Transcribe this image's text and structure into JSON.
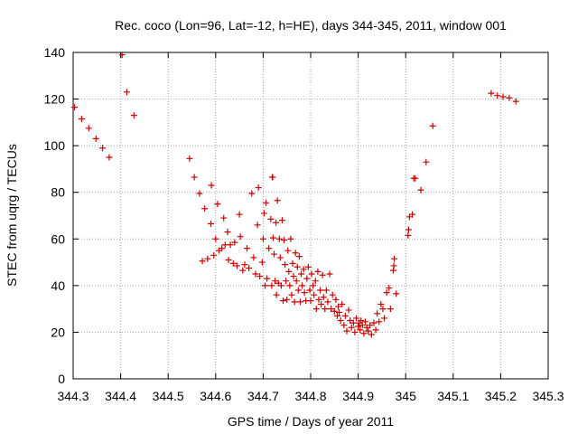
{
  "chart_data": {
    "type": "scatter",
    "title": "Rec. coco (Lon=96, Lat=-12, h=HE), days 344-345, 2011, window 001",
    "xlabel": "GPS time / Days of year 2011",
    "ylabel": "STEC from uqrg / TECUs",
    "xlim": [
      344.3,
      345.3
    ],
    "ylim": [
      0,
      140
    ],
    "xticks": [
      "344.3",
      "344.4",
      "344.5",
      "344.6",
      "344.7",
      "344.8",
      "344.9",
      "345",
      "345.1",
      "345.2",
      "345.3"
    ],
    "yticks": [
      "0",
      "20",
      "40",
      "60",
      "80",
      "100",
      "120",
      "140"
    ],
    "grid": true,
    "marker": "plus",
    "colors": {
      "marker": "#cc0000",
      "grid": "#a0a0a0",
      "axis": "#000000"
    },
    "points": [
      [
        344.303,
        116.5
      ],
      [
        344.318,
        111.5
      ],
      [
        344.333,
        107.5
      ],
      [
        344.348,
        103.0
      ],
      [
        344.362,
        99.0
      ],
      [
        344.376,
        95.0
      ],
      [
        344.403,
        139.0
      ],
      [
        344.413,
        123.0
      ],
      [
        344.428,
        113.0
      ],
      [
        344.545,
        94.5
      ],
      [
        344.555,
        86.5
      ],
      [
        344.566,
        79.5
      ],
      [
        344.572,
        50.5
      ],
      [
        344.577,
        73.0
      ],
      [
        344.583,
        51.5
      ],
      [
        344.59,
        66.5
      ],
      [
        344.591,
        83.0
      ],
      [
        344.596,
        53.0
      ],
      [
        344.6,
        60.0
      ],
      [
        344.604,
        75.0
      ],
      [
        344.607,
        55.0
      ],
      [
        344.613,
        56.0
      ],
      [
        344.617,
        69.0
      ],
      [
        344.62,
        57.5
      ],
      [
        344.625,
        63.0
      ],
      [
        344.627,
        51.0
      ],
      [
        344.631,
        57.5
      ],
      [
        344.637,
        49.5
      ],
      [
        344.64,
        58.5
      ],
      [
        344.645,
        48.5
      ],
      [
        344.65,
        70.5
      ],
      [
        344.652,
        61.0
      ],
      [
        344.657,
        46.5
      ],
      [
        344.661,
        49.0
      ],
      [
        344.666,
        56.0
      ],
      [
        344.67,
        47.5
      ],
      [
        344.676,
        79.5
      ],
      [
        344.68,
        52.0
      ],
      [
        344.684,
        45.0
      ],
      [
        344.688,
        66.0
      ],
      [
        344.69,
        82.0
      ],
      [
        344.693,
        44.0
      ],
      [
        344.698,
        50.0
      ],
      [
        344.7,
        60.0
      ],
      [
        344.702,
        71.0
      ],
      [
        344.704,
        40.0
      ],
      [
        344.706,
        75.5
      ],
      [
        344.708,
        43.0
      ],
      [
        344.712,
        56.0
      ],
      [
        344.716,
        68.5
      ],
      [
        344.718,
        40.0
      ],
      [
        344.719,
        86.5
      ],
      [
        344.72,
        86.5
      ],
      [
        344.721,
        60.5
      ],
      [
        344.723,
        53.5
      ],
      [
        344.725,
        42.0
      ],
      [
        344.727,
        67.0
      ],
      [
        344.728,
        36.0
      ],
      [
        344.73,
        76.5
      ],
      [
        344.732,
        41.0
      ],
      [
        344.734,
        60.0
      ],
      [
        344.736,
        52.0
      ],
      [
        344.738,
        40.0
      ],
      [
        344.74,
        68.0
      ],
      [
        344.742,
        33.5
      ],
      [
        344.744,
        59.5
      ],
      [
        344.746,
        49.0
      ],
      [
        344.748,
        42.0
      ],
      [
        344.75,
        34.0
      ],
      [
        344.752,
        55.0
      ],
      [
        344.754,
        46.0
      ],
      [
        344.756,
        40.0
      ],
      [
        344.758,
        60.0
      ],
      [
        344.76,
        36.0
      ],
      [
        344.762,
        49.5
      ],
      [
        344.764,
        44.0
      ],
      [
        344.766,
        33.0
      ],
      [
        344.768,
        54.0
      ],
      [
        344.77,
        42.0
      ],
      [
        344.772,
        48.0
      ],
      [
        344.774,
        38.0
      ],
      [
        344.776,
        52.5
      ],
      [
        344.778,
        33.0
      ],
      [
        344.78,
        45.0
      ],
      [
        344.782,
        40.0
      ],
      [
        344.785,
        47.0
      ],
      [
        344.787,
        37.0
      ],
      [
        344.79,
        33.5
      ],
      [
        344.792,
        43.0
      ],
      [
        344.795,
        48.0
      ],
      [
        344.798,
        38.0
      ],
      [
        344.8,
        33.5
      ],
      [
        344.802,
        45.0
      ],
      [
        344.805,
        40.0
      ],
      [
        344.807,
        36.0
      ],
      [
        344.81,
        42.0
      ],
      [
        344.812,
        30.0
      ],
      [
        344.815,
        46.0
      ],
      [
        344.817,
        34.0
      ],
      [
        344.82,
        38.0
      ],
      [
        344.822,
        32.0
      ],
      [
        344.825,
        44.5
      ],
      [
        344.827,
        35.0
      ],
      [
        344.83,
        30.0
      ],
      [
        344.833,
        38.0
      ],
      [
        344.836,
        33.0
      ],
      [
        344.84,
        45.0
      ],
      [
        344.843,
        30.0
      ],
      [
        344.846,
        36.0
      ],
      [
        344.85,
        29.0
      ],
      [
        344.853,
        34.0
      ],
      [
        344.856,
        27.0
      ],
      [
        344.858,
        31.0
      ],
      [
        344.86,
        28.5
      ],
      [
        344.863,
        25.0
      ],
      [
        344.866,
        32.0
      ],
      [
        344.87,
        23.0
      ],
      [
        344.873,
        27.0
      ],
      [
        344.876,
        20.5
      ],
      [
        344.88,
        29.5
      ],
      [
        344.883,
        25.0
      ],
      [
        344.886,
        22.0
      ],
      [
        344.89,
        24.0
      ],
      [
        344.893,
        20.0
      ],
      [
        344.896,
        26.0
      ],
      [
        344.9,
        22.5
      ],
      [
        344.902,
        24.0
      ],
      [
        344.904,
        21.0
      ],
      [
        344.906,
        25.0
      ],
      [
        344.909,
        23.0
      ],
      [
        344.912,
        19.5
      ],
      [
        344.915,
        24.5
      ],
      [
        344.918,
        22.0
      ],
      [
        344.921,
        20.5
      ],
      [
        344.925,
        23.0
      ],
      [
        344.928,
        19.0
      ],
      [
        344.933,
        24.0
      ],
      [
        344.937,
        21.0
      ],
      [
        344.94,
        28.0
      ],
      [
        344.944,
        24.5
      ],
      [
        344.948,
        32.0
      ],
      [
        344.952,
        30.0
      ],
      [
        344.955,
        26.0
      ],
      [
        344.96,
        37.0
      ],
      [
        344.965,
        39.0
      ],
      [
        344.968,
        30.0
      ],
      [
        344.974,
        46.5
      ],
      [
        344.975,
        48.5
      ],
      [
        344.976,
        51.5
      ],
      [
        344.98,
        36.5
      ],
      [
        345.005,
        61.5
      ],
      [
        345.006,
        64.0
      ],
      [
        345.008,
        69.5
      ],
      [
        345.014,
        70.5
      ],
      [
        345.017,
        86.0
      ],
      [
        345.02,
        86.0
      ],
      [
        345.032,
        81.0
      ],
      [
        345.043,
        93.0
      ],
      [
        345.057,
        108.5
      ],
      [
        345.18,
        122.5
      ],
      [
        345.193,
        121.5
      ],
      [
        345.205,
        121.0
      ],
      [
        345.218,
        120.5
      ],
      [
        345.232,
        119.0
      ]
    ]
  }
}
